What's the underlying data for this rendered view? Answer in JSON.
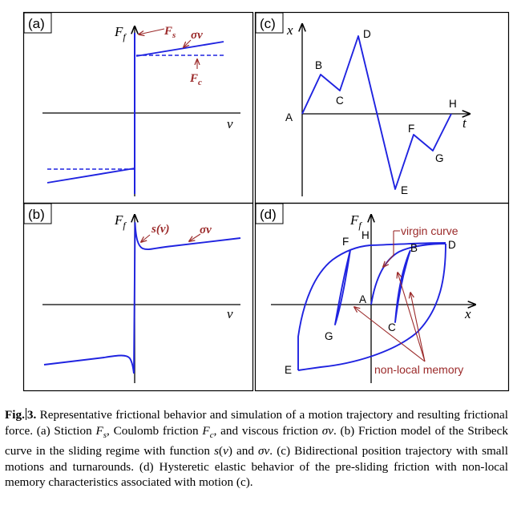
{
  "panels": {
    "a": {
      "tag": "(a)",
      "y_axis": "F",
      "y_axis_sub": "f",
      "x_axis": "v",
      "labels": {
        "stiction_main": "F",
        "stiction_sub": "s",
        "viscous": "σv",
        "coulomb_main": "F",
        "coulomb_sub": "c"
      }
    },
    "b": {
      "tag": "(b)",
      "y_axis": "F",
      "y_axis_sub": "f",
      "x_axis": "v",
      "labels": {
        "stribeck": "s(v)",
        "viscous": "σv"
      }
    },
    "c": {
      "tag": "(c)",
      "y_axis": "x",
      "x_axis": "t",
      "points": [
        "A",
        "B",
        "C",
        "D",
        "E",
        "F",
        "G",
        "H"
      ]
    },
    "d": {
      "tag": "(d)",
      "y_axis": "F",
      "y_axis_sub": "f",
      "x_axis": "x",
      "points": [
        "A",
        "B",
        "C",
        "D",
        "E",
        "F",
        "G",
        "H"
      ],
      "labels": {
        "virgin": "virgin curve",
        "memory": "non-local memory"
      }
    }
  },
  "colors": {
    "curve": "#1f23e0",
    "annotation": "#9b2a2a",
    "border": "#000000"
  },
  "caption": {
    "label": "Fig.",
    "number": "3.",
    "parts": [
      {
        "t": " Representative frictional behavior and simulation of a motion trajectory and resulting frictional force. (a) Stiction "
      },
      {
        "t": "F",
        "i": true
      },
      {
        "t": "s",
        "sub": true,
        "i": true
      },
      {
        "t": ", Coulomb friction "
      },
      {
        "t": "F",
        "i": true
      },
      {
        "t": "c",
        "sub": true,
        "i": true
      },
      {
        "t": ", and viscous friction "
      },
      {
        "t": "σv",
        "i": true
      },
      {
        "t": ". (b) Friction model of the Stribeck curve in the sliding regime with function "
      },
      {
        "t": "s",
        "i": true
      },
      {
        "t": "("
      },
      {
        "t": "v",
        "i": true
      },
      {
        "t": ")"
      },
      {
        "t": " and "
      },
      {
        "t": "σv",
        "i": true
      },
      {
        "t": ". (c) Bidirectional position trajectory with small motions and turnarounds. (d) Hysteretic elastic behavior of the pre-sliding friction with non-local memory characteristics associated with motion (c)."
      }
    ]
  }
}
